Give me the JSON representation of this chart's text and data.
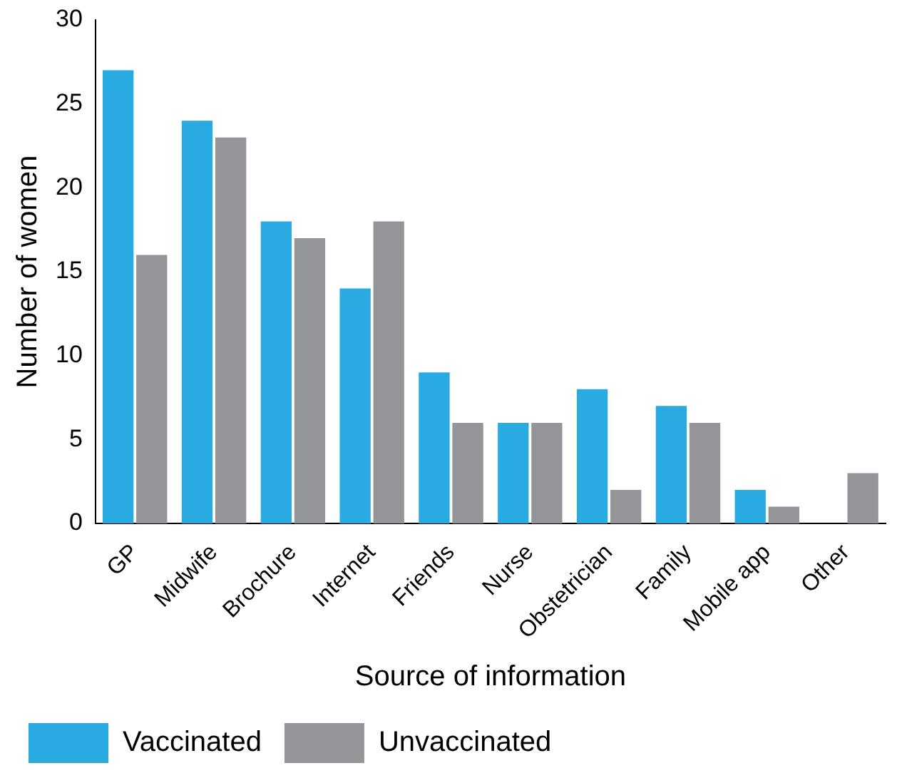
{
  "chart_data": {
    "type": "bar",
    "xlabel": "Source of information",
    "ylabel": "Number of women",
    "categories": [
      "GP",
      "Midwife",
      "Brochure",
      "Internet",
      "Friends",
      "Nurse",
      "Obstetrician",
      "Family",
      "Mobile app",
      "Other"
    ],
    "series": [
      {
        "name": "Vaccinated",
        "color": "#29abe2",
        "values": [
          27,
          24,
          18,
          14,
          9,
          6,
          8,
          7,
          2,
          0
        ]
      },
      {
        "name": "Unvaccinated",
        "color": "#939598",
        "values": [
          16,
          23,
          17,
          18,
          6,
          6,
          2,
          6,
          1,
          3
        ]
      }
    ],
    "ylim": [
      0,
      30
    ],
    "yticks": [
      0,
      5,
      10,
      15,
      20,
      25,
      30
    ],
    "grid": false,
    "legend": "bottom left"
  }
}
